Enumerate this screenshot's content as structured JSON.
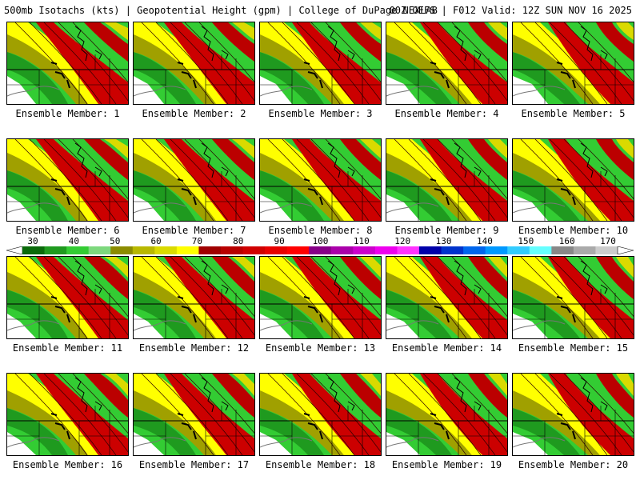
{
  "header": {
    "title_left": "500mb Isotachs (kts) | Geopotential Height (gpm) | College of DuPage NEXLAB",
    "title_right": "00Z GEFS | F012 Valid: 12Z SUN NOV 16 2025"
  },
  "colorbar": {
    "labels": [
      "30",
      "40",
      "50",
      "60",
      "70",
      "80",
      "90",
      "100",
      "110",
      "120",
      "130",
      "140",
      "150",
      "160",
      "170"
    ],
    "colors": [
      "#0b6a0b",
      "#1f9a1f",
      "#33cc33",
      "#7dd87d",
      "#8c8c00",
      "#b8b800",
      "#dada00",
      "#ffff00",
      "#a00000",
      "#b80000",
      "#d00000",
      "#e80000",
      "#ff0000",
      "#880088",
      "#aa00aa",
      "#cc00cc",
      "#ee00ee",
      "#ff33ff",
      "#0000aa",
      "#0033cc",
      "#0066ee",
      "#0099ff",
      "#33ccff",
      "#66ffff",
      "#888888",
      "#aaaaaa",
      "#cccccc"
    ]
  },
  "panels": [
    {
      "caption": "Ensemble Member: 1"
    },
    {
      "caption": "Ensemble Member: 2"
    },
    {
      "caption": "Ensemble Member: 3"
    },
    {
      "caption": "Ensemble Member: 4"
    },
    {
      "caption": "Ensemble Member: 5"
    },
    {
      "caption": "Ensemble Member: 6"
    },
    {
      "caption": "Ensemble Member: 7"
    },
    {
      "caption": "Ensemble Member: 8"
    },
    {
      "caption": "Ensemble Member: 9"
    },
    {
      "caption": "Ensemble Member: 10"
    },
    {
      "caption": "Ensemble Member: 11"
    },
    {
      "caption": "Ensemble Member: 12"
    },
    {
      "caption": "Ensemble Member: 13"
    },
    {
      "caption": "Ensemble Member: 14"
    },
    {
      "caption": "Ensemble Member: 15"
    },
    {
      "caption": "Ensemble Member: 16"
    },
    {
      "caption": "Ensemble Member: 17"
    },
    {
      "caption": "Ensemble Member: 18"
    },
    {
      "caption": "Ensemble Member: 19"
    },
    {
      "caption": "Ensemble Member: 20"
    }
  ]
}
